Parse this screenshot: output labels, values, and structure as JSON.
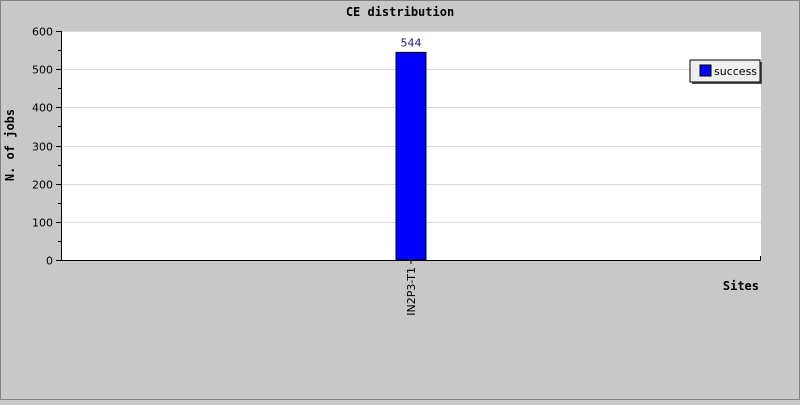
{
  "colors": {
    "background": "#c8c8c8",
    "plot_background": "#ffffff",
    "gridline": "#d8d8d8",
    "bar": "#0000ff",
    "value_label": "#1a1a80"
  },
  "chart_data": {
    "type": "bar",
    "title": "CE distribution",
    "xlabel": "Sites",
    "ylabel": "N. of jobs",
    "categories": [
      "IN2P3-T1"
    ],
    "series": [
      {
        "name": "success",
        "values": [
          544
        ],
        "color": "#0000ff"
      }
    ],
    "ylim": [
      0,
      600
    ],
    "yticks": [
      0,
      100,
      200,
      300,
      400,
      500,
      600
    ],
    "grid": true,
    "legend": "top-right",
    "data_labels": true
  }
}
